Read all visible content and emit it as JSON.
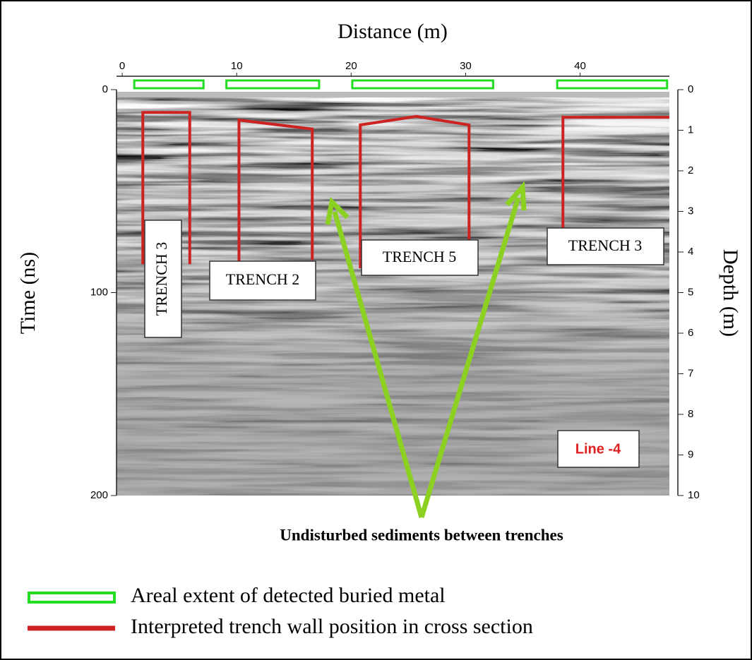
{
  "chart_data": {
    "type": "radargram",
    "x_label": "Distance (m)",
    "y_label": "Time (ns)",
    "y2_label": "Depth (m)",
    "xlim": [
      -0.5,
      47.8
    ],
    "xticks": [
      0,
      10,
      20,
      30,
      40
    ],
    "ylim": [
      0,
      200
    ],
    "yticks": [
      0,
      100,
      200
    ],
    "y2lim": [
      0,
      10
    ],
    "y2ticks": [
      0,
      1,
      2,
      3,
      4,
      5,
      6,
      7,
      8,
      9,
      10
    ],
    "metal_extents": {
      "name": "Areal extent of detected buried metal",
      "color": "#22dd22",
      "ranges": [
        [
          1.05,
          7.1
        ],
        [
          9.1,
          17.2
        ],
        [
          20.1,
          32.4
        ],
        [
          38.0,
          47.6
        ]
      ]
    },
    "trench_walls": {
      "name": "Interpreted trench wall position in cross section",
      "color": "#cc2222",
      "axis": "y2",
      "lines": [
        {
          "x": [
            1.8,
            1.8,
            5.9,
            5.9
          ],
          "depth": [
            4.3,
            0.56,
            0.56,
            4.3
          ]
        },
        {
          "x": [
            10.2,
            10.2,
            16.6,
            16.6
          ],
          "depth": [
            4.3,
            0.75,
            0.97,
            4.2
          ]
        },
        {
          "x": [
            20.8,
            20.8,
            25.7,
            30.3,
            30.3
          ],
          "depth": [
            4.4,
            0.87,
            0.66,
            0.87,
            3.7
          ]
        },
        {
          "x": [
            38.5,
            38.5,
            47.8
          ],
          "depth": [
            3.4,
            0.68,
            0.68
          ]
        }
      ]
    },
    "trench_labels": [
      "TRENCH 3",
      "TRENCH 2",
      "TRENCH 5",
      "TRENCH 3"
    ],
    "line_label": "Line -4",
    "annotation": "Undisturbed sediments between trenches"
  }
}
